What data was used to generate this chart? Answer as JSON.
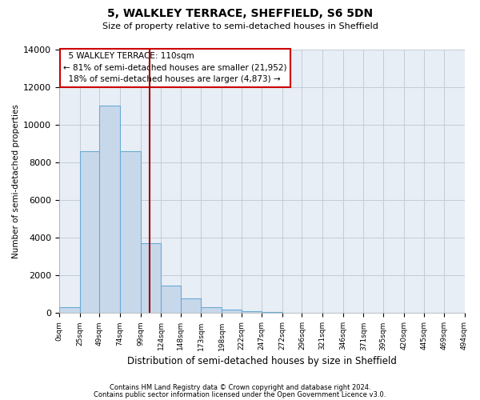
{
  "title": "5, WALKLEY TERRACE, SHEFFIELD, S6 5DN",
  "subtitle": "Size of property relative to semi-detached houses in Sheffield",
  "xlabel": "Distribution of semi-detached houses by size in Sheffield",
  "ylabel": "Number of semi-detached properties",
  "property_size": 110,
  "property_label": "5 WALKLEY TERRACE: 110sqm",
  "pct_smaller": 81,
  "count_smaller": "21,952",
  "pct_larger": 18,
  "count_larger": "4,873",
  "bar_color": "#c8d8eb",
  "bar_edge_color": "#6aaad4",
  "vline_color": "#990000",
  "annotation_box_color": "#cc0000",
  "bin_edges": [
    0,
    25,
    49,
    74,
    99,
    124,
    148,
    173,
    198,
    222,
    247,
    272,
    296,
    321,
    346,
    371,
    395,
    420,
    445,
    469,
    494
  ],
  "bin_counts": [
    300,
    8600,
    11000,
    8600,
    3700,
    1450,
    800,
    300,
    200,
    100,
    50,
    20,
    10,
    5,
    5,
    3,
    2,
    2,
    1,
    1
  ],
  "ylim": [
    0,
    14000
  ],
  "yticks": [
    0,
    2000,
    4000,
    6000,
    8000,
    10000,
    12000,
    14000
  ],
  "tick_labels": [
    "0sqm",
    "25sqm",
    "49sqm",
    "74sqm",
    "99sqm",
    "124sqm",
    "148sqm",
    "173sqm",
    "198sqm",
    "222sqm",
    "247sqm",
    "272sqm",
    "296sqm",
    "321sqm",
    "346sqm",
    "371sqm",
    "395sqm",
    "420sqm",
    "445sqm",
    "469sqm",
    "494sqm"
  ],
  "footer_line1": "Contains HM Land Registry data © Crown copyright and database right 2024.",
  "footer_line2": "Contains public sector information licensed under the Open Government Licence v3.0.",
  "background_color": "#ffffff",
  "plot_bg_color": "#e8eef5",
  "grid_color": "#c0ccd8"
}
